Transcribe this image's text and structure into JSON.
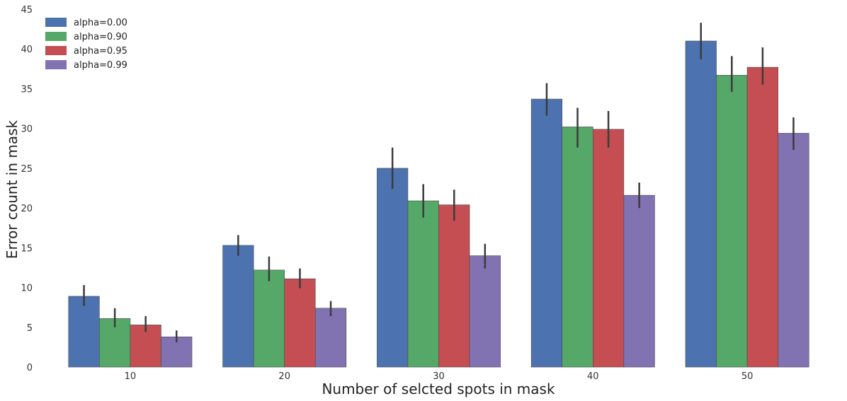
{
  "chart_data": {
    "type": "bar",
    "title": "",
    "xlabel": "Number of selcted spots in mask",
    "ylabel": "Error count in mask",
    "ylim": [
      0,
      45
    ],
    "yticks": [
      "0",
      "5",
      "10",
      "15",
      "20",
      "25",
      "30",
      "35",
      "40",
      "45"
    ],
    "categories": [
      "10",
      "20",
      "30",
      "40",
      "50"
    ],
    "grid": false,
    "legend_position": "top-left",
    "series": [
      {
        "name": "alpha=0.00",
        "color": "#4c72b0",
        "values": [
          8.9,
          15.3,
          25.0,
          33.7,
          41.0
        ],
        "err_low": [
          7.7,
          14.0,
          22.4,
          31.6,
          38.7
        ],
        "err_high": [
          10.3,
          16.6,
          27.6,
          35.7,
          43.3
        ]
      },
      {
        "name": "alpha=0.90",
        "color": "#55a868",
        "values": [
          6.1,
          12.2,
          20.9,
          30.2,
          36.7
        ],
        "err_low": [
          5.0,
          10.8,
          18.8,
          27.6,
          34.6
        ],
        "err_high": [
          7.4,
          13.9,
          23.0,
          32.6,
          39.1
        ]
      },
      {
        "name": "alpha=0.95",
        "color": "#c44e52",
        "values": [
          5.3,
          11.1,
          20.4,
          29.9,
          37.7
        ],
        "err_low": [
          4.4,
          9.9,
          18.4,
          27.6,
          35.5
        ],
        "err_high": [
          6.4,
          12.4,
          22.3,
          32.2,
          40.2
        ]
      },
      {
        "name": "alpha=0.99",
        "color": "#8172b2",
        "values": [
          3.8,
          7.4,
          14.0,
          21.6,
          29.4
        ],
        "err_low": [
          3.1,
          6.4,
          12.4,
          20.0,
          27.3
        ],
        "err_high": [
          4.6,
          8.3,
          15.5,
          23.2,
          31.4
        ]
      }
    ]
  }
}
